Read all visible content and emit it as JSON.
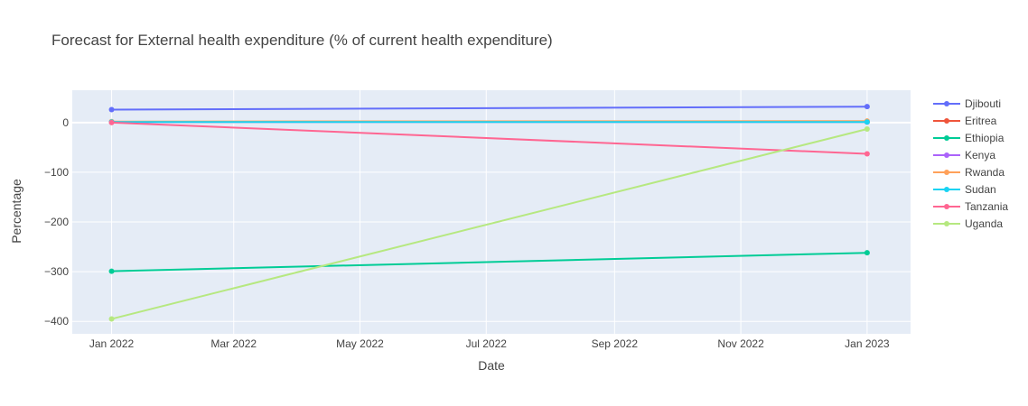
{
  "chart_data": {
    "type": "line",
    "title": "Forecast for External health expenditure (% of current health expenditure)",
    "xlabel": "Date",
    "ylabel": "Percentage",
    "x": [
      "2022-01-01",
      "2023-01-01"
    ],
    "xlim": [
      "2021-12-13",
      "2023-01-22"
    ],
    "ylim": [
      -425,
      65
    ],
    "x_ticks": [
      {
        "date": "2022-01-01",
        "label": "Jan 2022"
      },
      {
        "date": "2022-03-01",
        "label": "Mar 2022"
      },
      {
        "date": "2022-05-01",
        "label": "May 2022"
      },
      {
        "date": "2022-07-01",
        "label": "Jul 2022"
      },
      {
        "date": "2022-09-01",
        "label": "Sep 2022"
      },
      {
        "date": "2022-11-01",
        "label": "Nov 2022"
      },
      {
        "date": "2023-01-01",
        "label": "Jan 2023"
      }
    ],
    "y_ticks": [
      {
        "value": 0,
        "label": "0"
      },
      {
        "value": -100,
        "label": "−100"
      },
      {
        "value": -200,
        "label": "−200"
      },
      {
        "value": -300,
        "label": "−300"
      },
      {
        "value": -400,
        "label": "−400"
      }
    ],
    "grid": true,
    "legend_position": "right",
    "series": [
      {
        "name": "Djibouti",
        "color": "#636efa",
        "values": [
          26,
          32
        ]
      },
      {
        "name": "Eritrea",
        "color": "#EF553B",
        "values": [
          1,
          1
        ]
      },
      {
        "name": "Ethiopia",
        "color": "#00cc96",
        "values": [
          -299,
          -262
        ]
      },
      {
        "name": "Kenya",
        "color": "#ab63fa",
        "values": [
          1,
          1
        ]
      },
      {
        "name": "Rwanda",
        "color": "#FFA15A",
        "values": [
          2,
          3
        ]
      },
      {
        "name": "Sudan",
        "color": "#19d3f3",
        "values": [
          1,
          1
        ]
      },
      {
        "name": "Tanzania",
        "color": "#FF6692",
        "values": [
          0,
          -63
        ]
      },
      {
        "name": "Uganda",
        "color": "#B6E880",
        "values": [
          -395,
          -13
        ]
      }
    ]
  }
}
